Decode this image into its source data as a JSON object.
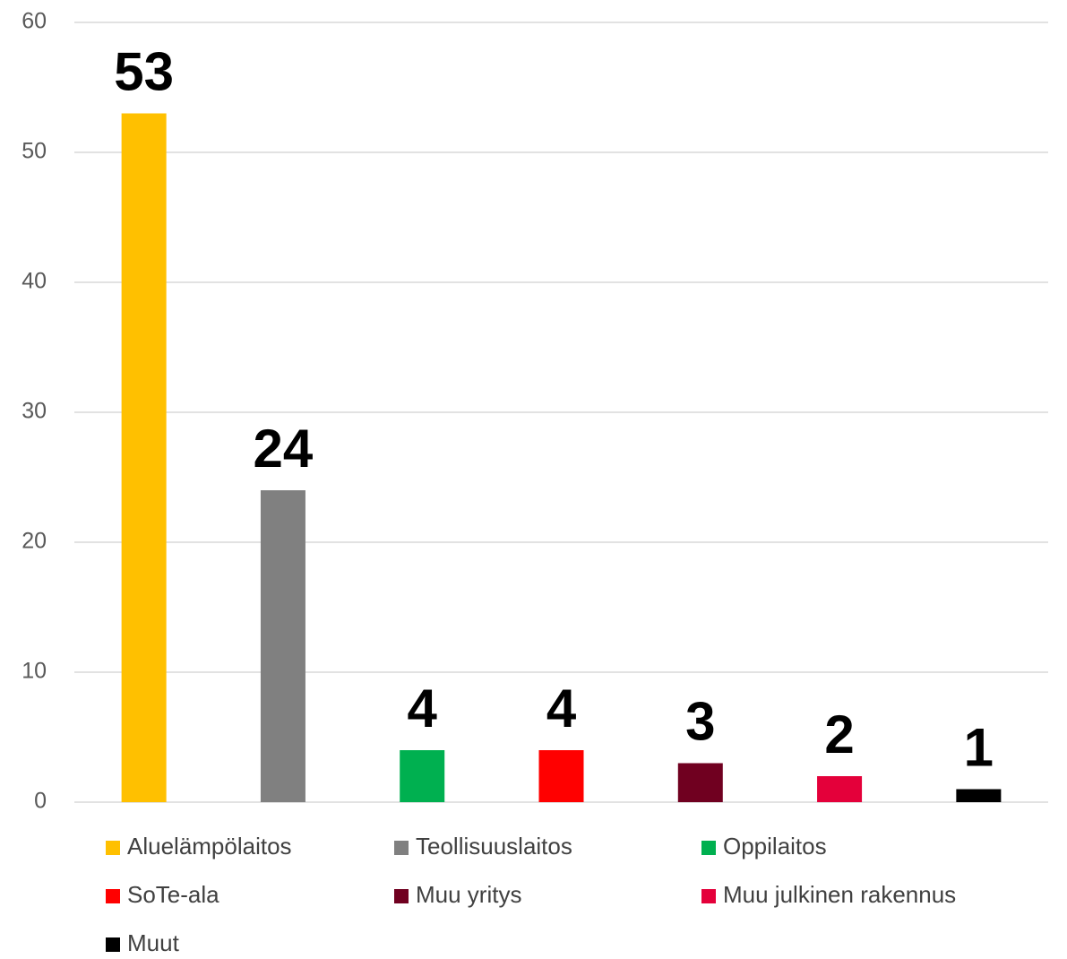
{
  "chart_data": {
    "type": "bar",
    "series": [
      {
        "name": "Aluelämpölaitos",
        "color": "#FFC000",
        "values": [
          53
        ]
      },
      {
        "name": "Teollisuuslaitos",
        "color": "#808080",
        "values": [
          24
        ]
      },
      {
        "name": "Oppilaitos",
        "color": "#00B050",
        "values": [
          4
        ]
      },
      {
        "name": "SoTe-ala",
        "color": "#FF0000",
        "values": [
          4
        ]
      },
      {
        "name": "Muu yritys",
        "color": "#700020",
        "values": [
          3
        ]
      },
      {
        "name": "Muu julkinen rakennus",
        "color": "#E4003A",
        "values": [
          2
        ]
      },
      {
        "name": "Muut",
        "color": "#000000",
        "values": [
          1
        ]
      }
    ],
    "ylim": [
      0,
      60
    ],
    "yticks": [
      0,
      10,
      20,
      30,
      40,
      50,
      60
    ],
    "grid": true,
    "legend": "bottom"
  }
}
